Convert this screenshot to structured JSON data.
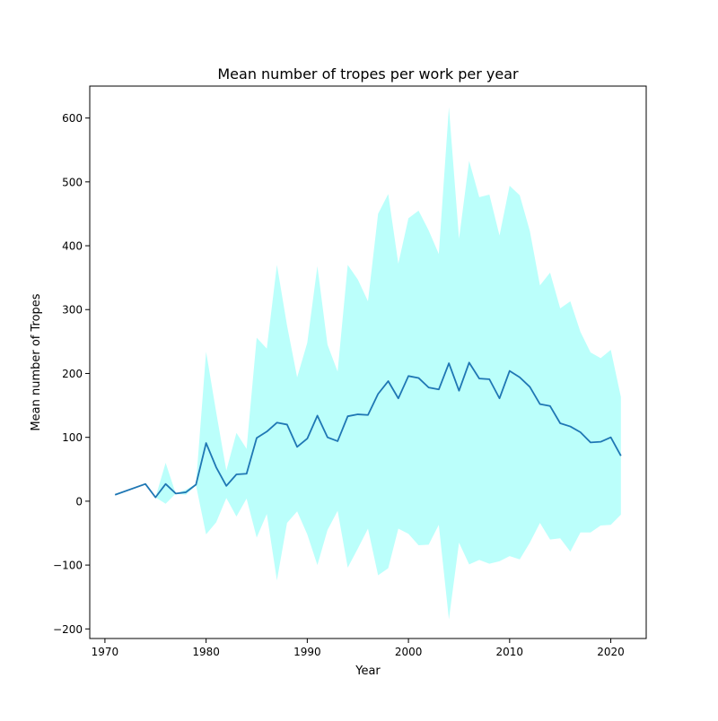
{
  "chart_data": {
    "type": "line",
    "title": "Mean number of tropes per work per year",
    "xlabel": "Year",
    "ylabel": "Mean number of Tropes",
    "xlim": [
      1968.5,
      2023.5
    ],
    "ylim": [
      -215,
      650
    ],
    "xticks": [
      1970,
      1980,
      1990,
      2000,
      2010,
      2020
    ],
    "yticks": [
      -200,
      -100,
      0,
      100,
      200,
      300,
      400,
      500,
      600
    ],
    "grid": false,
    "legend": "none",
    "colors": {
      "line": "#1f77b4",
      "band": "#bbfffb"
    },
    "series": [
      {
        "x": [
          1971,
          1974,
          1975,
          1976,
          1977,
          1978,
          1979,
          1980,
          1981,
          1982,
          1983,
          1984,
          1985,
          1986,
          1987,
          1988,
          1989,
          1990,
          1991,
          1992,
          1993,
          1994,
          1995,
          1996,
          1997,
          1998,
          1999,
          2000,
          2001,
          2002,
          2003,
          2004,
          2005,
          2006,
          2007,
          2008,
          2009,
          2010,
          2011,
          2012,
          2013,
          2014,
          2015,
          2016,
          2017,
          2018,
          2019,
          2020,
          2021
        ],
        "y": [
          10,
          27,
          6,
          27,
          12,
          14,
          26,
          91,
          53,
          24,
          42,
          43,
          99,
          109,
          123,
          120,
          85,
          98,
          134,
          100,
          94,
          133,
          136,
          135,
          168,
          188,
          161,
          196,
          193,
          178,
          175,
          216,
          173,
          217,
          192,
          191,
          161,
          204,
          194,
          179,
          152,
          149,
          122,
          117,
          108,
          92,
          93,
          100,
          71
        ],
        "upper": [
          10,
          27,
          6,
          60,
          12,
          18,
          27,
          234,
          139,
          48,
          107,
          82,
          256,
          239,
          370,
          275,
          194,
          248,
          368,
          245,
          203,
          370,
          347,
          313,
          450,
          481,
          372,
          443,
          455,
          424,
          387,
          617,
          411,
          533,
          476,
          480,
          416,
          494,
          479,
          423,
          338,
          358,
          302,
          313,
          265,
          233,
          224,
          237,
          163
        ],
        "lower": [
          10,
          27,
          6,
          -4,
          12,
          10,
          25,
          -52,
          -33,
          5,
          -24,
          4,
          -57,
          -20,
          -124,
          -34,
          -16,
          -52,
          -100,
          -45,
          -15,
          -104,
          -74,
          -43,
          -116,
          -105,
          -43,
          -51,
          -69,
          -68,
          -37,
          -185,
          -65,
          -99,
          -92,
          -98,
          -94,
          -86,
          -91,
          -65,
          -34,
          -60,
          -58,
          -79,
          -49,
          -49,
          -38,
          -37,
          -21
        ]
      }
    ]
  }
}
